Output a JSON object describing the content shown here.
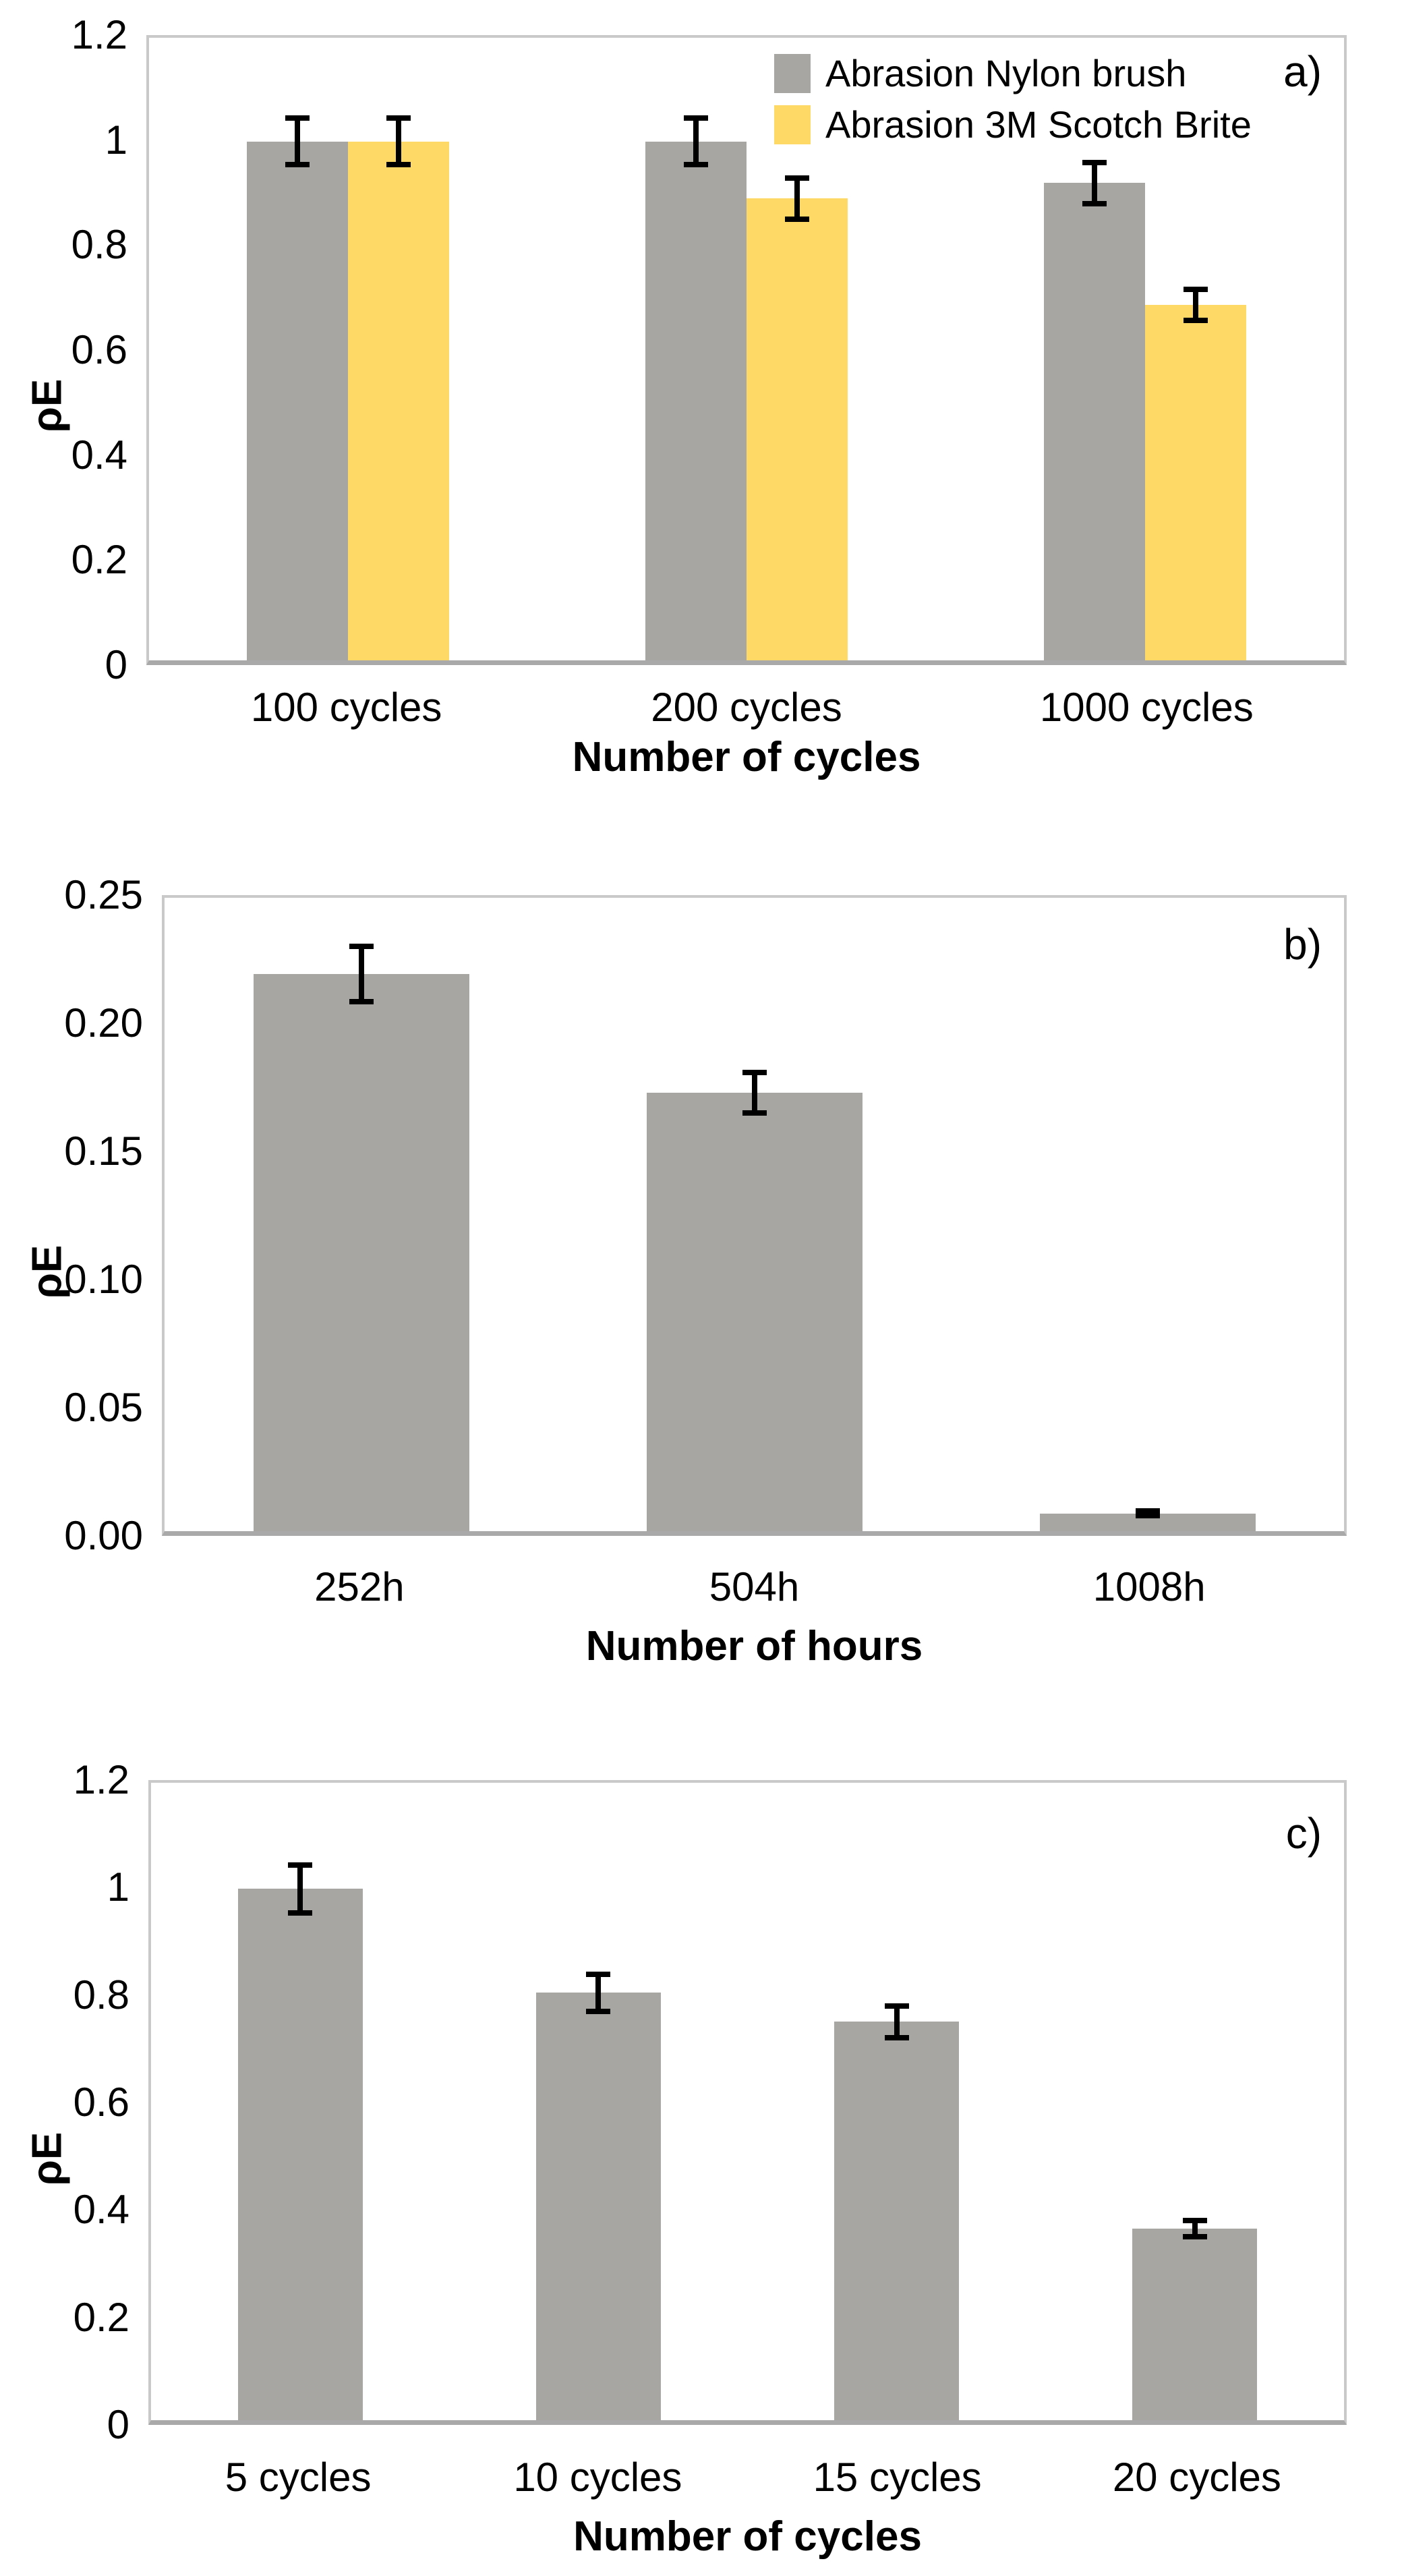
{
  "figure": {
    "background": "#ffffff",
    "bar_gray": "#a8a6a3",
    "bar_yellow": "#ffd965",
    "frame_color": "#c9c9c9",
    "axis_color": "#a9a9a9",
    "error_color": "#000000"
  },
  "chart_data": [
    {
      "type": "bar",
      "panel": "a)",
      "categories": [
        "100 cycles",
        "200 cycles",
        "1000 cycles"
      ],
      "series": [
        {
          "name": "Abrasion Nylon brush",
          "color": "#a8a6a3",
          "values": [
            1.0,
            1.0,
            0.92
          ],
          "errors": [
            0.05,
            0.05,
            0.045
          ]
        },
        {
          "name": "Abrasion 3M Scotch Brite",
          "color": "#ffd965",
          "values": [
            1.0,
            0.89,
            0.685
          ],
          "errors": [
            0.05,
            0.045,
            0.035
          ]
        }
      ],
      "xlabel": "Number of cycles",
      "ylabel": "ρE",
      "ylim": [
        0,
        1.2
      ],
      "yticks": [
        "1.2",
        "1",
        "0.8",
        "0.6",
        "0.4",
        "0.2",
        "0"
      ],
      "legend_position": "top-right-inside",
      "grid": false
    },
    {
      "type": "bar",
      "panel": "b)",
      "categories": [
        "252h",
        "504h",
        "1008h"
      ],
      "series": [
        {
          "name": "",
          "color": "#a8a6a3",
          "values": [
            0.22,
            0.173,
            0.007
          ],
          "errors": [
            0.012,
            0.009,
            0.002
          ]
        }
      ],
      "xlabel": "Number of hours",
      "ylabel": "ρE",
      "ylim": [
        0,
        0.25
      ],
      "yticks": [
        "0.25",
        "0.20",
        "0.15",
        "0.10",
        "0.05",
        "0.00"
      ],
      "legend_position": "none",
      "grid": false
    },
    {
      "type": "bar",
      "panel": "c)",
      "categories": [
        "5 cycles",
        "10 cycles",
        "15 cycles",
        "20 cycles"
      ],
      "series": [
        {
          "name": "",
          "color": "#a8a6a3",
          "values": [
            1.0,
            0.805,
            0.75,
            0.36
          ],
          "errors": [
            0.05,
            0.04,
            0.035,
            0.02
          ]
        }
      ],
      "xlabel": "Number of cycles",
      "ylabel": "ρE",
      "ylim": [
        0,
        1.2
      ],
      "yticks": [
        "1.2",
        "1",
        "0.8",
        "0.6",
        "0.4",
        "0.2",
        "0"
      ],
      "legend_position": "none",
      "grid": false
    }
  ]
}
